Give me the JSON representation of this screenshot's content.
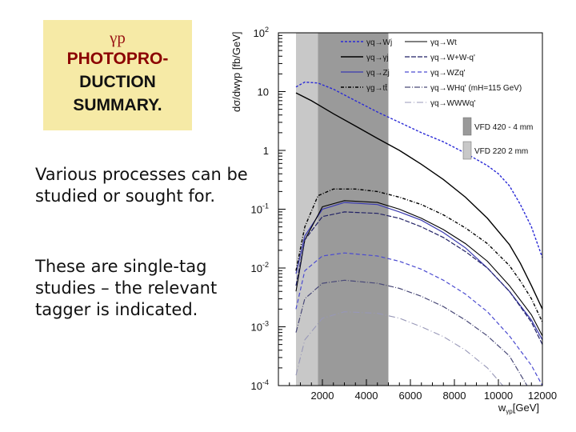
{
  "slide": {
    "title_line1": "γp",
    "title_line2": "PHOTOPRO-",
    "title_line3": "DUCTION",
    "title_line4": "SUMMARY.",
    "para1": "Various processes can be studied or sought for.",
    "para2": "These are single-tag studies – the relevant tagger is indicated."
  },
  "chart_data": {
    "type": "line",
    "title": "",
    "xlabel": "wγp [GeV]",
    "ylabel": "dσ/dwγp [fb/GeV]",
    "xlim": [
      0,
      12000
    ],
    "ylim": [
      0.0001,
      100
    ],
    "yscale": "log",
    "x_ticks": [
      "2000",
      "4000",
      "6000",
      "8000",
      "10000",
      "12000"
    ],
    "y_ticks": [
      "10^2",
      "10",
      "1",
      "10^-1",
      "10^-2",
      "10^-3",
      "10^-4"
    ],
    "shaded_regions": [
      {
        "label": "VFD 220   2 mm",
        "xrange": [
          800,
          1800
        ],
        "color": "#c8c8c8"
      },
      {
        "label": "VFD 420 - 4 mm",
        "xrange": [
          1800,
          5000
        ],
        "color": "#9a9a9a"
      }
    ],
    "legend_placement": "top-right",
    "series": [
      {
        "name": "γq→Wj",
        "color": "#2a2ad6",
        "dash": "3,2",
        "width": 1.4,
        "points": [
          [
            800,
            12
          ],
          [
            1200,
            14.5
          ],
          [
            1800,
            14
          ],
          [
            2500,
            11
          ],
          [
            3500,
            7
          ],
          [
            4500,
            4.5
          ],
          [
            5500,
            3
          ],
          [
            6500,
            2
          ],
          [
            7500,
            1.4
          ],
          [
            8500,
            0.9
          ],
          [
            9500,
            0.55
          ],
          [
            10000,
            0.4
          ],
          [
            10500,
            0.25
          ],
          [
            11000,
            0.12
          ],
          [
            11500,
            0.05
          ],
          [
            12000,
            0.015
          ]
        ]
      },
      {
        "name": "γq→γj",
        "color": "#000000",
        "dash": "",
        "width": 1.4,
        "points": [
          [
            800,
            9.5
          ],
          [
            1500,
            7
          ],
          [
            2500,
            4.2
          ],
          [
            3500,
            2.6
          ],
          [
            4500,
            1.6
          ],
          [
            5500,
            1.0
          ],
          [
            6500,
            0.58
          ],
          [
            7500,
            0.32
          ],
          [
            8500,
            0.16
          ],
          [
            9500,
            0.07
          ],
          [
            10500,
            0.025
          ],
          [
            11000,
            0.012
          ],
          [
            11500,
            0.005
          ],
          [
            12000,
            0.002
          ]
        ]
      },
      {
        "name": "γq→Zj",
        "color": "#3a3ab0",
        "dash": "",
        "width": 1.2,
        "points": [
          [
            800,
            0.008
          ],
          [
            1200,
            0.035
          ],
          [
            2000,
            0.1
          ],
          [
            3000,
            0.13
          ],
          [
            4500,
            0.12
          ],
          [
            5500,
            0.09
          ],
          [
            6500,
            0.065
          ],
          [
            7500,
            0.04
          ],
          [
            8500,
            0.022
          ],
          [
            9500,
            0.01
          ],
          [
            10500,
            0.004
          ],
          [
            11500,
            0.0013
          ],
          [
            12000,
            0.0006
          ]
        ]
      },
      {
        "name": "γg→tt̄",
        "color": "#000000",
        "dash": "4,2,1,2",
        "width": 1.4,
        "points": [
          [
            800,
            0.009
          ],
          [
            1200,
            0.05
          ],
          [
            1800,
            0.17
          ],
          [
            2500,
            0.22
          ],
          [
            3500,
            0.22
          ],
          [
            4500,
            0.2
          ],
          [
            5500,
            0.16
          ],
          [
            6500,
            0.12
          ],
          [
            7500,
            0.08
          ],
          [
            8500,
            0.048
          ],
          [
            9500,
            0.026
          ],
          [
            10500,
            0.011
          ],
          [
            11000,
            0.006
          ],
          [
            11500,
            0.003
          ],
          [
            12000,
            0.0012
          ]
        ]
      },
      {
        "name": "γq→Wt",
        "color": "#000000",
        "dash": "",
        "width": 1.1,
        "points": [
          [
            800,
            0.004
          ],
          [
            1200,
            0.03
          ],
          [
            2000,
            0.11
          ],
          [
            3000,
            0.14
          ],
          [
            4500,
            0.13
          ],
          [
            5500,
            0.1
          ],
          [
            6500,
            0.07
          ],
          [
            7500,
            0.045
          ],
          [
            8500,
            0.026
          ],
          [
            9500,
            0.013
          ],
          [
            10500,
            0.005
          ],
          [
            11500,
            0.0016
          ],
          [
            12000,
            0.0007
          ]
        ]
      },
      {
        "name": "γq→W+W-q'",
        "color": "#222266",
        "dash": "6,2",
        "width": 1.2,
        "points": [
          [
            800,
            0.005
          ],
          [
            1200,
            0.03
          ],
          [
            2000,
            0.075
          ],
          [
            3000,
            0.09
          ],
          [
            4500,
            0.085
          ],
          [
            5500,
            0.07
          ],
          [
            6500,
            0.05
          ],
          [
            7500,
            0.033
          ],
          [
            8500,
            0.019
          ],
          [
            9500,
            0.01
          ],
          [
            10500,
            0.004
          ],
          [
            11500,
            0.0012
          ],
          [
            12000,
            0.0005
          ]
        ]
      },
      {
        "name": "γq→WZq'",
        "color": "#4b4bd0",
        "dash": "5,3",
        "width": 1.2,
        "points": [
          [
            800,
            0.002
          ],
          [
            1200,
            0.009
          ],
          [
            2000,
            0.016
          ],
          [
            3000,
            0.018
          ],
          [
            4500,
            0.016
          ],
          [
            5500,
            0.013
          ],
          [
            6500,
            0.0095
          ],
          [
            7500,
            0.0062
          ],
          [
            8500,
            0.0036
          ],
          [
            9500,
            0.0018
          ],
          [
            10500,
            0.0007
          ],
          [
            11500,
            0.00022
          ],
          [
            12000,
            0.0001
          ]
        ]
      },
      {
        "name": "γq→WHq' (mH=115 GeV)",
        "color": "#4a4a78",
        "dash": "7,2,1,2",
        "width": 1.2,
        "points": [
          [
            800,
            0.0008
          ],
          [
            1200,
            0.003
          ],
          [
            2000,
            0.0055
          ],
          [
            3000,
            0.0062
          ],
          [
            4500,
            0.0055
          ],
          [
            5500,
            0.0045
          ],
          [
            6500,
            0.0033
          ],
          [
            7500,
            0.0022
          ],
          [
            8500,
            0.0013
          ],
          [
            9500,
            0.0007
          ],
          [
            10500,
            0.00032
          ],
          [
            11300,
            0.0001
          ]
        ]
      },
      {
        "name": "γq→WWWq'",
        "color": "#9898b8",
        "dash": "8,3,1,3",
        "width": 1.1,
        "points": [
          [
            800,
            0.00015
          ],
          [
            1200,
            0.0006
          ],
          [
            2000,
            0.0014
          ],
          [
            3000,
            0.0018
          ],
          [
            4500,
            0.0017
          ],
          [
            5500,
            0.0014
          ],
          [
            6500,
            0.001
          ],
          [
            7500,
            0.00068
          ],
          [
            8500,
            0.0004
          ],
          [
            9500,
            0.0002
          ],
          [
            10200,
            0.0001
          ]
        ]
      }
    ]
  }
}
